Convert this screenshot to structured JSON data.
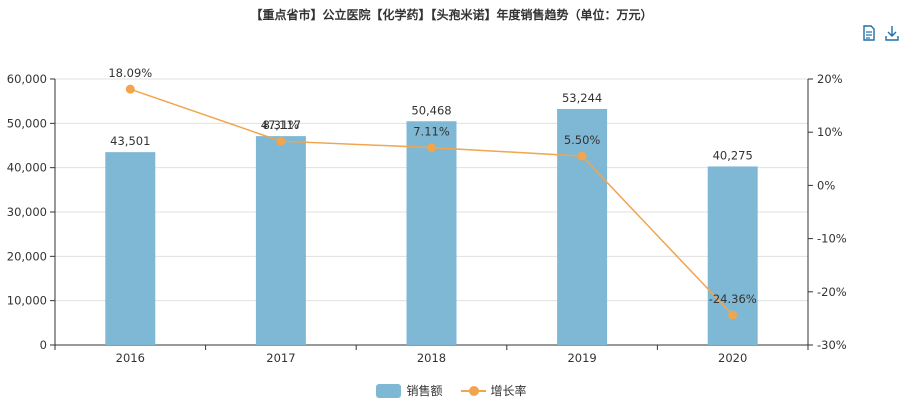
{
  "title": "【重点省市】公立医院【化学药】【头孢米诺】年度销售趋势（单位：万元）",
  "toolbox": {
    "data_view_icon": "document-icon",
    "save_icon": "download-icon"
  },
  "colors": {
    "bar": "#7fb8d4",
    "line": "#f0a54e",
    "axis": "#333333",
    "grid": "#e0e0e0"
  },
  "chart_data": {
    "type": "bar",
    "categories": [
      "2016",
      "2017",
      "2018",
      "2019",
      "2020"
    ],
    "series": [
      {
        "name": "销售额",
        "type": "bar",
        "axis": "left",
        "values": [
          43501,
          47117,
          50468,
          53244,
          40275
        ],
        "labels": [
          "43,501",
          "47,117",
          "50,468",
          "53,244",
          "40,275"
        ]
      },
      {
        "name": "增长率",
        "type": "line",
        "axis": "right",
        "values": [
          18.09,
          8.31,
          7.11,
          5.5,
          -24.36
        ],
        "labels": [
          "18.09%",
          "8.31%",
          "7.11%",
          "5.50%",
          "-24.36%"
        ]
      }
    ],
    "y_left": {
      "min": 0,
      "max": 60000,
      "ticks": [
        "0",
        "10,000",
        "20,000",
        "30,000",
        "40,000",
        "50,000",
        "60,000"
      ]
    },
    "y_right": {
      "min": -30,
      "max": 20,
      "ticks": [
        "-30%",
        "-20%",
        "-10%",
        "0%",
        "10%",
        "20%"
      ]
    },
    "grid": true,
    "legend_position": "bottom"
  }
}
